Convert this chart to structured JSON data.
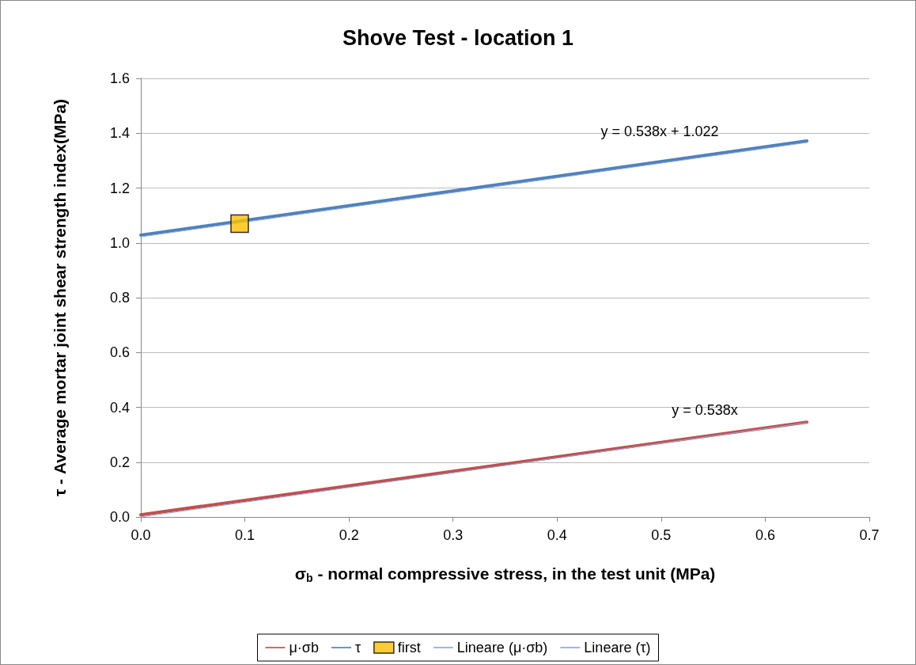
{
  "chart_data": {
    "type": "line",
    "title": "Shove Test - location 1",
    "xlabel": "σ$_{b}$ - normal compressive stress, in the test unit (MPa)",
    "ylabel": "τ - Average mortar joint shear strength index(MPa)",
    "xlim": [
      0,
      0.7
    ],
    "xticks": [
      {
        "value": 0,
        "label": "0.0"
      },
      0.1,
      0.2,
      0.3,
      0.4,
      0.5,
      0.6,
      0.7
    ],
    "ylim": [
      0,
      1.6
    ],
    "yticks": [
      {
        "value": 0,
        "label": "0.0"
      },
      0.2,
      0.4,
      0.6,
      0.8,
      {
        "value": 1,
        "label": "1.0"
      },
      1.2,
      1.4,
      1.6
    ],
    "grid": "y",
    "legend": "bottom",
    "marker": "none",
    "series": [
      {
        "name": "μ·σb",
        "color": "#c0504d",
        "x": [
          0,
          0.64
        ],
        "values": [
          0.008,
          0.346
        ]
      },
      {
        "name": "τ",
        "color": "#4f81bd",
        "x": [
          0,
          0.64
        ],
        "values": [
          1.028,
          1.372
        ]
      },
      {
        "name": "first",
        "type": "scatter",
        "marker": "square",
        "color": "#ffc000",
        "x": [
          0.095
        ],
        "values": [
          1.07
        ]
      },
      {
        "name": "Lineare (μ·σb)",
        "color": "#8ea9db",
        "x": [
          0,
          0.64
        ],
        "values": [
          0,
          0.344
        ]
      },
      {
        "name": "Lineare (τ)",
        "color": "#8ea9db",
        "x": [
          0,
          0.64
        ],
        "values": [
          1.022,
          1.366
        ]
      }
    ],
    "annotations": [
      "y = 0.538x + 1.022",
      "y = 0.538x"
    ]
  }
}
